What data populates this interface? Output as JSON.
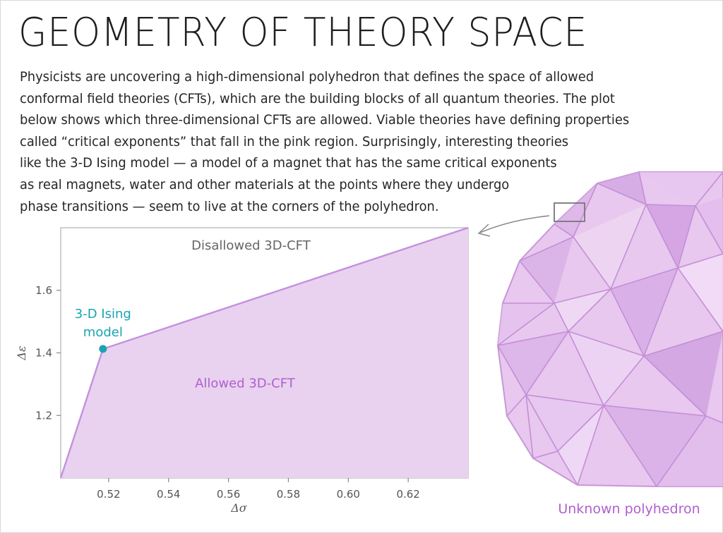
{
  "header": {
    "title": "GEOMETRY OF THEORY SPACE",
    "body": "Physicists are uncovering a high-dimensional polyhedron that defines the space of allowed\nconformal field theories (CFTs), which are the building blocks of all quantum theories. The plot\nbelow shows which three-dimensional CFTs are allowed. Viable theories have defining properties\ncalled “critical exponents” that fall in the pink region. Surprisingly, interesting theories\nlike the 3-D Ising model — a model of a magnet that has the same critical exponents\nas real magnets, water and other materials at the points where they undergo\nphase transitions — seem to live at the corners of the polyhedron."
  },
  "colors": {
    "region_fill": "#e8d2f0",
    "region_stroke": "#c590dc",
    "ising": "#1aa3b3",
    "allowed_text": "#b060cc",
    "disallowed_text": "#666666",
    "polyhedron_label": "#b060cc"
  },
  "chart_data": {
    "type": "area",
    "xlabel": "Δσ",
    "ylabel": "Δε",
    "xlim": [
      0.504,
      0.64
    ],
    "ylim": [
      1.0,
      1.8
    ],
    "xticks": [
      0.52,
      0.54,
      0.56,
      0.58,
      0.6,
      0.62
    ],
    "xtick_labels": [
      "0.52",
      "0.54",
      "0.56",
      "0.58",
      "0.60",
      "0.62"
    ],
    "yticks": [
      1.2,
      1.4,
      1.6
    ],
    "ytick_labels": [
      "1.2",
      "1.4",
      "1.6"
    ],
    "grid": false,
    "allowed_boundary": [
      [
        0.504,
        1.0
      ],
      [
        0.5181,
        1.4126
      ],
      [
        0.64,
        1.8
      ]
    ],
    "ising_point": {
      "x": 0.5181,
      "y": 1.4126,
      "label_line1": "3-D Ising",
      "label_line2": "model"
    },
    "annotations": {
      "disallowed": "Disallowed 3D-CFT",
      "allowed": "Allowed 3D-CFT"
    }
  },
  "polyhedron": {
    "label": "Unknown polyhedron"
  }
}
